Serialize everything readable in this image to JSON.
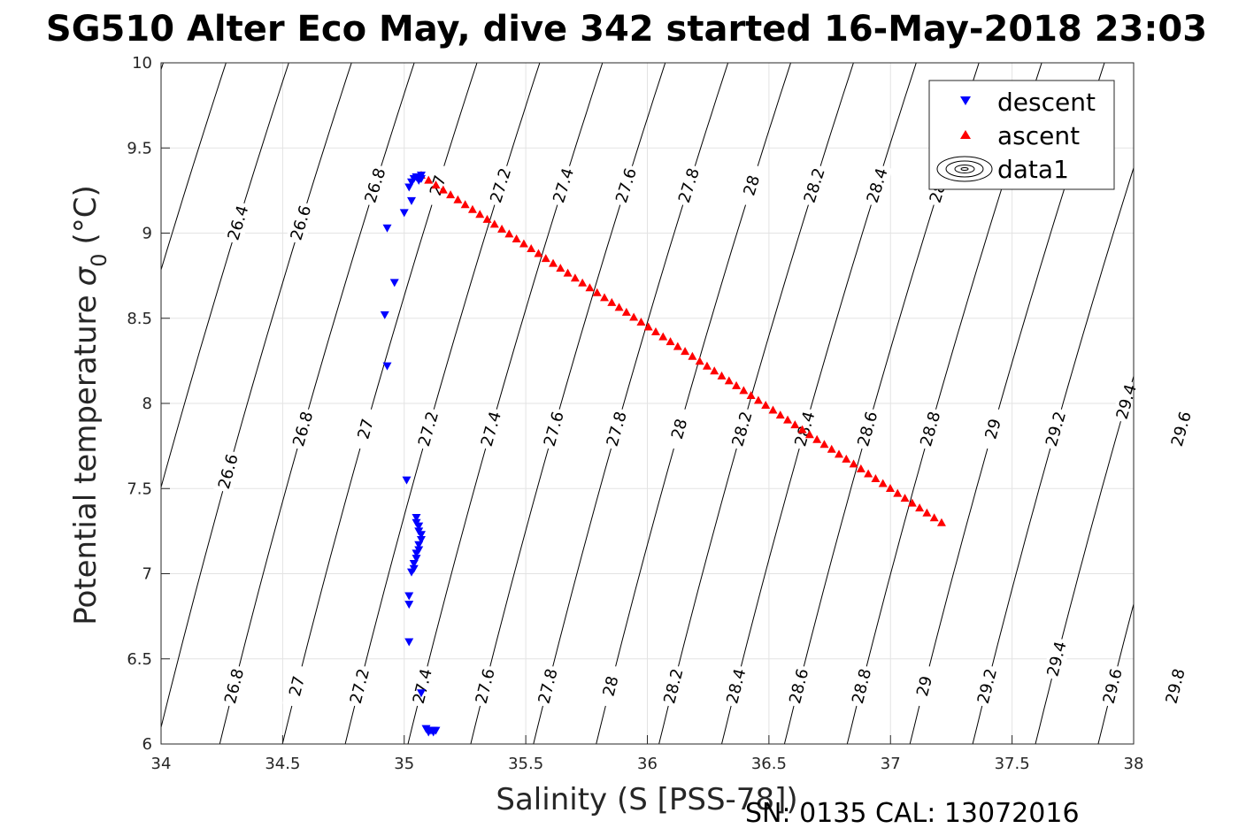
{
  "figure": {
    "title": "SG510 Alter Eco May, dive 342 started 16-May-2018 23:03",
    "footer": "SN: 0135  CAL: 13072016"
  },
  "chart_data": {
    "type": "scatter",
    "xlabel": "Salinity (S [PSS-78])",
    "ylabel_text": "Potential temperature",
    "ylabel_symbol": "σ",
    "ylabel_subscript": "0",
    "ylabel_unit": "(°C)",
    "xlim": [
      34,
      38
    ],
    "ylim": [
      6,
      10
    ],
    "xticks": [
      "34",
      "34.5",
      "35",
      "35.5",
      "36",
      "36.5",
      "37",
      "37.5",
      "38"
    ],
    "yticks": [
      "6",
      "6.5",
      "7",
      "7.5",
      "8",
      "8.5",
      "9",
      "9.5",
      "10"
    ],
    "grid": true,
    "legend_position": "top-right",
    "legend": [
      "descent",
      "ascent",
      "data1"
    ],
    "series": [
      {
        "name": "descent",
        "marker": "triangle-down",
        "color": "#0000ff",
        "points": [
          [
            35.02,
            9.27
          ],
          [
            35.03,
            9.3
          ],
          [
            35.04,
            9.32
          ],
          [
            35.05,
            9.33
          ],
          [
            35.06,
            9.33
          ],
          [
            35.07,
            9.34
          ],
          [
            35.07,
            9.32
          ],
          [
            35.06,
            9.31
          ],
          [
            35.03,
            9.19
          ],
          [
            35.0,
            9.12
          ],
          [
            34.93,
            9.03
          ],
          [
            34.96,
            8.71
          ],
          [
            34.92,
            8.52
          ],
          [
            34.93,
            8.22
          ],
          [
            35.01,
            7.55
          ],
          [
            35.05,
            7.33
          ],
          [
            35.05,
            7.3
          ],
          [
            35.06,
            7.28
          ],
          [
            35.06,
            7.25
          ],
          [
            35.07,
            7.23
          ],
          [
            35.07,
            7.2
          ],
          [
            35.06,
            7.17
          ],
          [
            35.06,
            7.14
          ],
          [
            35.05,
            7.12
          ],
          [
            35.05,
            7.09
          ],
          [
            35.04,
            7.06
          ],
          [
            35.04,
            7.03
          ],
          [
            35.03,
            7.01
          ],
          [
            35.02,
            6.87
          ],
          [
            35.02,
            6.82
          ],
          [
            35.02,
            6.6
          ],
          [
            35.07,
            6.3
          ],
          [
            35.09,
            6.09
          ],
          [
            35.1,
            6.08
          ],
          [
            35.11,
            6.08
          ],
          [
            35.12,
            6.08
          ],
          [
            35.13,
            6.08
          ],
          [
            35.1,
            6.07
          ],
          [
            35.12,
            6.07
          ]
        ]
      },
      {
        "name": "ascent",
        "marker": "triangle-up",
        "color": "#ff0000",
        "line": {
          "s1": 35.07,
          "t1": 9.34,
          "s2": 37.21,
          "t2": 7.3,
          "n": 72
        }
      }
    ],
    "isopycnals": {
      "name": "data1",
      "color": "#000000",
      "values": [
        "26.4",
        "26.6",
        "26.8",
        "27",
        "27.2",
        "27.4",
        "27.6",
        "27.8",
        "28",
        "28.2",
        "28.4",
        "28.6",
        "28.8",
        "29",
        "29.2",
        "29.4",
        "29.6",
        "29.8"
      ],
      "label_rows": [
        {
          "t": 9.28,
          "values": [
            "26.8",
            "27",
            "27.2",
            "27.4",
            "27.6",
            "27.8",
            "28",
            "28.2",
            "28.4",
            "28.6"
          ]
        },
        {
          "t": 9.06,
          "values": [
            "26.4",
            "26.6"
          ]
        },
        {
          "t": 7.85,
          "values": [
            "26.8",
            "27",
            "27.2",
            "27.4",
            "27.6",
            "27.8",
            "28",
            "28.2",
            "28.4",
            "28.6",
            "28.8",
            "29",
            "29.2",
            "29.6"
          ]
        },
        {
          "t": 7.6,
          "values": [
            "26.6"
          ]
        },
        {
          "t": 8.01,
          "values": [
            "29.4"
          ]
        },
        {
          "t": 6.34,
          "values": [
            "26.8",
            "27",
            "27.2",
            "27.4",
            "27.6",
            "27.8",
            "28",
            "28.2",
            "28.4",
            "28.6",
            "28.8",
            "29",
            "29.2",
            "29.6",
            "29.8"
          ]
        },
        {
          "t": 6.5,
          "values": [
            "29.4"
          ]
        }
      ]
    }
  }
}
